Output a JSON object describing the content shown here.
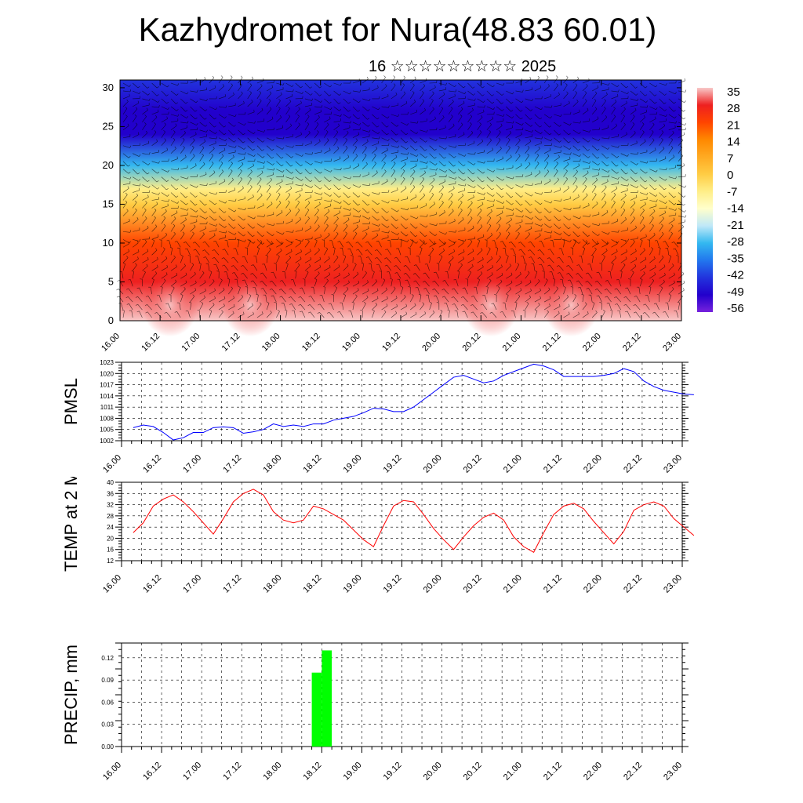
{
  "title": "Kazhydromet for Nura(48.83 60.01)",
  "subtitle": "16 ☆☆☆☆☆☆☆☆☆ 2025",
  "time_labels": [
    "16.00",
    "16.12",
    "17.00",
    "17.12",
    "18.00",
    "18.12",
    "19.00",
    "19.12",
    "20.00",
    "20.12",
    "21.00",
    "21.12",
    "22.00",
    "22.12",
    "23.00"
  ],
  "colors": {
    "pmsl_line": "#0000ff",
    "temp_line": "#ff0000",
    "precip_bar": "#00ff00",
    "grid": "#000000"
  },
  "chart_data": [
    {
      "type": "heatmap",
      "name": "vertical-section",
      "title": "",
      "xlabel": "",
      "ylabel": "",
      "x_ticks": [
        "16.00",
        "16.12",
        "17.00",
        "17.12",
        "18.00",
        "18.12",
        "19.00",
        "19.12",
        "20.00",
        "20.12",
        "21.00",
        "21.12",
        "22.00",
        "22.12",
        "23.00"
      ],
      "y_ticks": [
        0,
        5,
        10,
        15,
        20,
        25,
        30
      ],
      "ylim": [
        0,
        31
      ],
      "colorbar_labels": [
        "35",
        "28",
        "21",
        "14",
        "7",
        "0",
        "-7",
        "-14",
        "-21",
        "-28",
        "-35",
        "-42",
        "-49",
        "-56"
      ],
      "colorbar_colors": [
        "#f8c8c8",
        "#ee2020",
        "#ff4400",
        "#ff8800",
        "#ffaa22",
        "#ffcc44",
        "#ffee88",
        "#ffffcc",
        "#bfe8f8",
        "#33b8f0",
        "#2277ee",
        "#2233dd",
        "#2200cc",
        "#7722dd"
      ],
      "temperature_by_level": [
        {
          "y": 0,
          "value": 30
        },
        {
          "y": 5,
          "value": 25
        },
        {
          "y": 10,
          "value": 14
        },
        {
          "y": 15,
          "value": -7
        },
        {
          "y": 17,
          "value": -14
        },
        {
          "y": 20,
          "value": -35
        },
        {
          "y": 24,
          "value": -56
        },
        {
          "y": 27,
          "value": -56
        },
        {
          "y": 31,
          "value": -49
        }
      ]
    },
    {
      "type": "line",
      "name": "pmsl",
      "ylabel": "PMSL",
      "ylim": [
        1002,
        1023
      ],
      "y_ticks": [
        1002,
        1005,
        1008,
        1011,
        1014,
        1017,
        1020,
        1023
      ],
      "x_ticks": [
        "16.00",
        "16.12",
        "17.00",
        "17.12",
        "18.00",
        "18.12",
        "19.00",
        "19.12",
        "20.00",
        "20.12",
        "21.00",
        "21.12",
        "22.00",
        "22.12",
        "23.00"
      ],
      "x_step_hours": 3,
      "values": [
        1005.5,
        1006.2,
        1005.8,
        1004.2,
        1002.2,
        1002.8,
        1004.2,
        1004.2,
        1005.5,
        1005.7,
        1005.5,
        1004.0,
        1004.4,
        1005.0,
        1006.5,
        1005.8,
        1006.2,
        1005.8,
        1006.5,
        1006.5,
        1007.5,
        1008.0,
        1008.5,
        1009.5,
        1010.7,
        1010.5,
        1009.8,
        1009.8,
        1011.0,
        1013.0,
        1015.0,
        1017.0,
        1019.0,
        1019.5,
        1018.5,
        1017.5,
        1018.0,
        1019.5,
        1020.5,
        1021.5,
        1022.5,
        1022.0,
        1021.0,
        1019.2,
        1019.2,
        1019.2,
        1019.2,
        1019.5,
        1020.0,
        1021.3,
        1020.5,
        1018.0,
        1016.5,
        1015.5,
        1015.0,
        1014.5,
        1014.3
      ]
    },
    {
      "type": "line",
      "name": "temp",
      "ylabel": "TEMP at 2 M",
      "ylim": [
        12,
        40
      ],
      "y_ticks": [
        12,
        16,
        20,
        24,
        28,
        32,
        36,
        40
      ],
      "x_ticks": [
        "16.00",
        "16.12",
        "17.00",
        "17.12",
        "18.00",
        "18.12",
        "19.00",
        "19.12",
        "20.00",
        "20.12",
        "21.00",
        "21.12",
        "22.00",
        "22.12",
        "23.00"
      ],
      "x_step_hours": 3,
      "values": [
        22,
        25.5,
        31.5,
        34,
        35.5,
        33,
        29.5,
        25.5,
        21.5,
        27,
        33,
        36,
        37.5,
        35.5,
        29.5,
        26.5,
        25.5,
        26.5,
        31.5,
        30.5,
        28.5,
        26.5,
        23,
        19.5,
        17,
        24.5,
        31.5,
        33.5,
        33,
        28.5,
        23.5,
        19.5,
        16,
        20.5,
        24.5,
        27.5,
        29,
        26.5,
        20.5,
        17,
        15,
        22,
        28.5,
        31.5,
        32.5,
        30.5,
        26,
        22,
        18,
        22.5,
        30,
        32,
        33,
        31.5,
        27,
        24,
        21
      ]
    },
    {
      "type": "bar",
      "name": "precip",
      "ylabel": "PRECIP, mm",
      "ylim": [
        0,
        0.14
      ],
      "y_ticks": [
        "0.00",
        "0.03",
        "0.06",
        "0.09",
        "0.12"
      ],
      "x_ticks": [
        "16.00",
        "16.12",
        "17.00",
        "17.12",
        "18.00",
        "18.12",
        "19.00",
        "19.12",
        "20.00",
        "20.12",
        "21.00",
        "21.12",
        "22.00",
        "22.12",
        "23.00"
      ],
      "bars": [
        {
          "from_hour": 57,
          "to_hour": 60,
          "value": 0.1
        },
        {
          "from_hour": 60,
          "to_hour": 63,
          "value": 0.13
        }
      ]
    }
  ]
}
